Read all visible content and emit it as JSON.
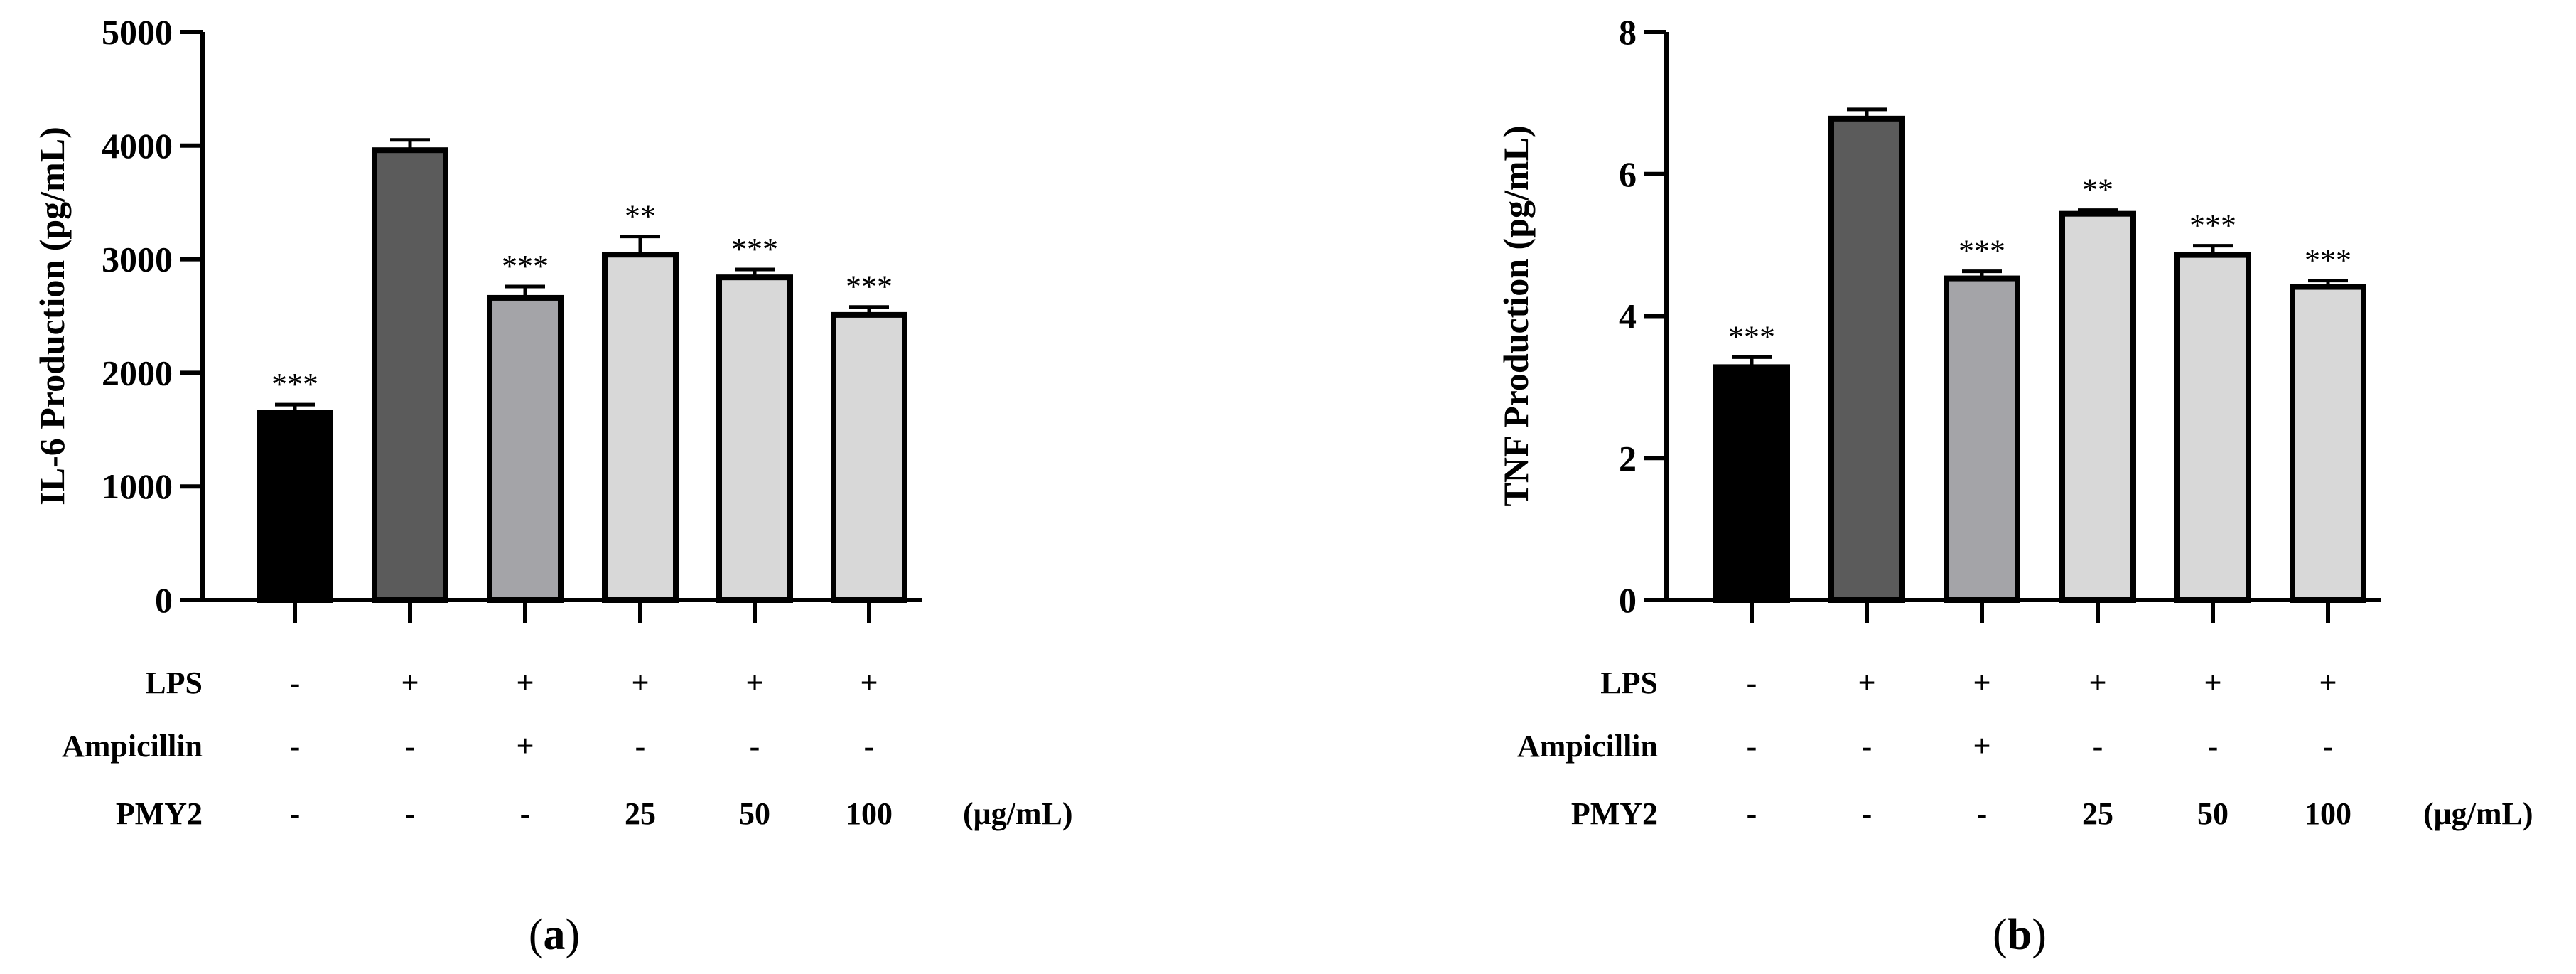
{
  "colors": {
    "bar_fills": [
      "#000000",
      "#5b5b5b",
      "#a4a4a8",
      "#d8d8d8",
      "#d8d8d8",
      "#d8d8d8"
    ],
    "stroke": "#000000"
  },
  "chart_data": [
    {
      "type": "bar",
      "id": "a",
      "panel_label": "a",
      "ylabel": "IL-6 Production (pg/mL)",
      "xlabel": "",
      "ylim": [
        0,
        5000
      ],
      "yticks": [
        0,
        1000,
        2000,
        3000,
        4000,
        5000
      ],
      "ytick_labels": [
        "0",
        "1000",
        "2000",
        "3000",
        "4000",
        "5000"
      ],
      "values": [
        1650,
        3960,
        2660,
        3040,
        2840,
        2510
      ],
      "errors": [
        70,
        90,
        100,
        160,
        70,
        70
      ],
      "significance": [
        "***",
        "",
        "***",
        "**",
        "***",
        "***"
      ],
      "condition_rows": [
        {
          "label": "LPS",
          "values": [
            "-",
            "+",
            "+",
            "+",
            "+",
            "+"
          ]
        },
        {
          "label": "Ampicillin",
          "values": [
            "-",
            "-",
            "+",
            "-",
            "-",
            "-"
          ]
        },
        {
          "label": "PMY2",
          "values": [
            "-",
            "-",
            "-",
            "25",
            "50",
            "100"
          ]
        }
      ],
      "unit_label": "(μg/mL)"
    },
    {
      "type": "bar",
      "id": "b",
      "panel_label": "b",
      "ylabel": "TNF Production (pg/mL)",
      "xlabel": "",
      "ylim": [
        0,
        8
      ],
      "yticks": [
        0,
        2,
        4,
        6,
        8
      ],
      "ytick_labels": [
        "0",
        "2",
        "4",
        "6",
        "8"
      ],
      "values": [
        3.28,
        6.78,
        4.53,
        5.44,
        4.86,
        4.41
      ],
      "errors": [
        0.14,
        0.13,
        0.1,
        0.05,
        0.13,
        0.09
      ],
      "significance": [
        "***",
        "",
        "***",
        "**",
        "***",
        "***"
      ],
      "condition_rows": [
        {
          "label": "LPS",
          "values": [
            "-",
            "+",
            "+",
            "+",
            "+",
            "+"
          ]
        },
        {
          "label": "Ampicillin",
          "values": [
            "-",
            "-",
            "+",
            "-",
            "-",
            "-"
          ]
        },
        {
          "label": "PMY2",
          "values": [
            "-",
            "-",
            "-",
            "25",
            "50",
            "100"
          ]
        }
      ],
      "unit_label": "(μg/mL)"
    }
  ]
}
